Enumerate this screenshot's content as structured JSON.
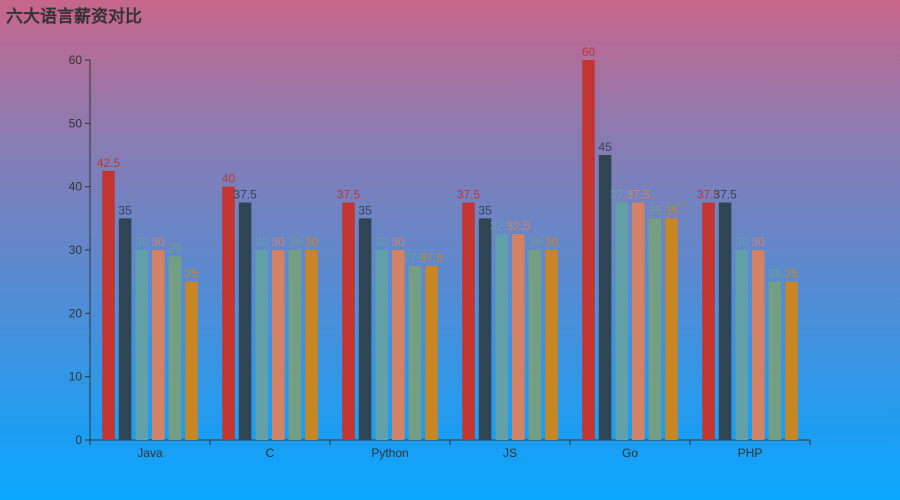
{
  "chart_data": {
    "type": "bar",
    "title": "六大语言薪资对比",
    "xlabel": "",
    "ylabel": "",
    "ylim": [
      0,
      60
    ],
    "yticks": [
      0,
      10,
      20,
      30,
      40,
      50,
      60
    ],
    "categories": [
      "Java",
      "C",
      "Python",
      "JS",
      "Go",
      "PHP"
    ],
    "series": [
      {
        "color": "#c23531",
        "values": [
          42.5,
          40,
          37.5,
          37.5,
          60,
          37.5
        ]
      },
      {
        "color": "#2f4554",
        "values": [
          35,
          37.5,
          35,
          35,
          45,
          37.5
        ]
      },
      {
        "color": "#61a0a8",
        "values": [
          30,
          30,
          30,
          32.5,
          37.5,
          30
        ]
      },
      {
        "color": "#d48265",
        "values": [
          30,
          30,
          30,
          32.5,
          37.5,
          30
        ]
      },
      {
        "color": "#749f83",
        "values": [
          29,
          30,
          27.5,
          30,
          35,
          25
        ]
      },
      {
        "color": "#ca8622",
        "values": [
          25,
          30,
          27.5,
          30,
          35,
          25
        ]
      }
    ],
    "grid": false,
    "data_labels": true
  }
}
